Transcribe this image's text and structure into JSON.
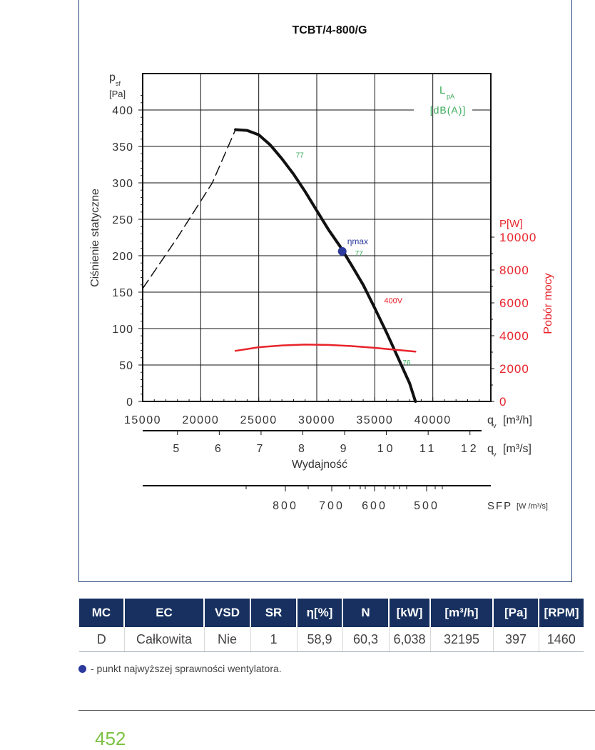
{
  "chart_data": {
    "type": "line",
    "title": "TCBT/4-800/G",
    "ylabel": "Ciśnienie statyczne",
    "y_symbol": "p",
    "y_symbol_sub": "sf",
    "y_unit": "[Pa]",
    "ylim": [
      0,
      400
    ],
    "y_ticks": [
      "0",
      "50",
      "100",
      "150",
      "200",
      "250",
      "300",
      "350",
      "400"
    ],
    "xlabel": "Wydajność",
    "xlim": [
      15000,
      45000
    ],
    "x_ticks": [
      "15000",
      "20000",
      "25000",
      "30000",
      "35000",
      "40000"
    ],
    "x_unit_label": "q",
    "x_unit_sub": "v",
    "x_unit": "[m³/h]",
    "x2_ticks": [
      "5",
      "6",
      "7",
      "8",
      "9",
      "10",
      "11",
      "12"
    ],
    "x2_unit": "[m³/s]",
    "sfp_ticks": [
      "800",
      "700",
      "600",
      "500"
    ],
    "sfp_label": "SFP",
    "sfp_unit": "[W /m³/s]",
    "y2_label": "Pobór mocy",
    "y2_unit": "P[W]",
    "y2_ticks": [
      "0",
      "2000",
      "4000",
      "6000",
      "8000",
      "10000"
    ],
    "y2_lim": [
      0,
      10000
    ],
    "lpa_label": "L",
    "lpa_sub": "pA",
    "lpa_unit": "[dB(A)]",
    "grid": true,
    "series": [
      {
        "type": "pressure",
        "color": "#111111",
        "points": [
          [
            23000,
            373
          ],
          [
            24000,
            372
          ],
          [
            25000,
            366
          ],
          [
            26000,
            352
          ],
          [
            27000,
            333
          ],
          [
            28000,
            312
          ],
          [
            29000,
            288
          ],
          [
            30000,
            262
          ],
          [
            31000,
            236
          ],
          [
            32000,
            213
          ],
          [
            33000,
            187
          ],
          [
            34000,
            160
          ],
          [
            35000,
            128
          ],
          [
            36000,
            95
          ],
          [
            37000,
            60
          ],
          [
            38000,
            25
          ],
          [
            38500,
            0
          ]
        ]
      },
      {
        "type": "unstable",
        "color": "#111111",
        "dashed": true,
        "points": [
          [
            15000,
            155
          ],
          [
            18000,
            225
          ],
          [
            21000,
            300
          ],
          [
            23000,
            373
          ]
        ]
      },
      {
        "name": "400V",
        "type": "power",
        "color": "#e8232a",
        "points": [
          [
            23000,
            3080
          ],
          [
            25000,
            3300
          ],
          [
            27000,
            3410
          ],
          [
            29000,
            3460
          ],
          [
            31000,
            3440
          ],
          [
            33000,
            3370
          ],
          [
            35000,
            3260
          ],
          [
            37000,
            3130
          ],
          [
            38500,
            3030
          ]
        ]
      }
    ],
    "annotations": [
      {
        "text": "77",
        "x": 28200,
        "y": 335,
        "color": "#3aaa5a"
      },
      {
        "text": "77",
        "x": 33300,
        "y": 200,
        "color": "#3aaa5a"
      },
      {
        "text": "76",
        "x": 37400,
        "y": 50,
        "color": "#3aaa5a"
      },
      {
        "text": "400V",
        "x": 35800,
        "y": 135,
        "color": "#e8232a"
      }
    ],
    "eta_point": {
      "label": "ηmax",
      "x": 32195,
      "y": 206
    }
  },
  "table": {
    "headers": [
      "MC",
      "EC",
      "VSD",
      "SR",
      "η[%]",
      "N",
      "[kW]",
      "[m³/h]",
      "[Pa]",
      "[RPM]"
    ],
    "rows": [
      [
        "D",
        "Całkowita",
        "Nie",
        "1",
        "58,9",
        "60,3",
        "6,038",
        "32195",
        "397",
        "1460"
      ]
    ]
  },
  "note": "- punkt najwyższej sprawności wentylatora.",
  "page_number": "452",
  "colors": {
    "navy": "#17305f",
    "frame": "#1e3f7a",
    "red": "#e8232a",
    "green": "#3aaa5a",
    "eta": "#2b3a9c",
    "page": "#7dc242"
  }
}
